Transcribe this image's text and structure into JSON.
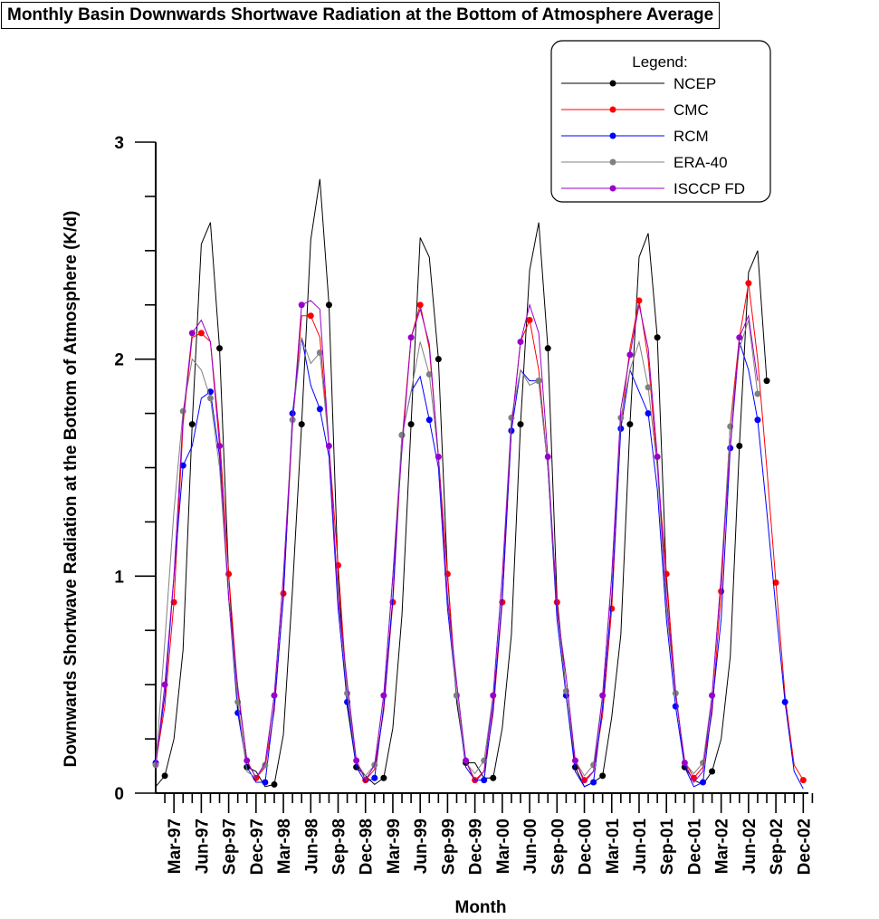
{
  "chart_data": {
    "type": "line",
    "title": "Monthly Basin Downwards Shortwave Radiation at the Bottom of Atmosphere Average",
    "xlabel": "Month",
    "ylabel": "Downwards Shortwave Radiation at the Bottom of Atmosphere (K/d)",
    "ylim": [
      0,
      3
    ],
    "yticks": [
      0,
      1,
      2,
      3
    ],
    "x_tick_labels": [
      "Mar-97",
      "Jun-97",
      "Sep-97",
      "Dec-97",
      "Mar-98",
      "Jun-98",
      "Sep-98",
      "Dec-98",
      "Mar-99",
      "Jun-99",
      "Sep-99",
      "Dec-99",
      "Mar-00",
      "Jun-00",
      "Sep-00",
      "Dec-00",
      "Mar-01",
      "Jun-01",
      "Sep-01",
      "Dec-01",
      "Mar-02",
      "Jun-02",
      "Sep-02",
      "Dec-02"
    ],
    "legend": {
      "title": "Legend:",
      "position": "top-right"
    },
    "series": [
      {
        "name": "NCEP",
        "color": "#000000",
        "marker_offset": 1,
        "values": [
          0.03,
          0.08,
          0.25,
          0.66,
          1.7,
          2.53,
          2.63,
          2.05,
          1.0,
          0.4,
          0.12,
          0.1,
          0.03,
          0.04,
          0.27,
          0.94,
          1.7,
          2.55,
          2.83,
          2.25,
          1.0,
          0.4,
          0.12,
          0.08,
          0.04,
          0.07,
          0.3,
          0.82,
          1.7,
          2.56,
          2.47,
          2.0,
          1.0,
          0.42,
          0.14,
          0.14,
          0.07,
          0.07,
          0.3,
          0.73,
          1.7,
          2.41,
          2.63,
          2.05,
          0.9,
          0.47,
          0.12,
          0.03,
          0.05,
          0.08,
          0.35,
          0.73,
          1.7,
          2.47,
          2.58,
          2.1,
          0.98,
          0.47,
          0.12,
          0.06,
          0.04,
          0.1,
          0.25,
          0.63,
          1.6,
          2.4,
          2.5,
          1.9
        ]
      },
      {
        "name": "CMC",
        "color": "#ff0000",
        "marker_offset": 2,
        "values": [
          0.14,
          0.4,
          0.88,
          1.7,
          2.1,
          2.12,
          2.08,
          1.65,
          1.01,
          0.47,
          0.15,
          0.07,
          0.12,
          0.38,
          0.92,
          1.7,
          2.2,
          2.2,
          2.1,
          1.6,
          1.05,
          0.45,
          0.15,
          0.06,
          0.11,
          0.38,
          0.88,
          1.62,
          2.1,
          2.25,
          2.05,
          1.55,
          1.01,
          0.45,
          0.15,
          0.06,
          0.1,
          0.37,
          0.88,
          1.68,
          2.08,
          2.18,
          1.95,
          1.5,
          0.88,
          0.45,
          0.15,
          0.06,
          0.1,
          0.36,
          0.85,
          1.7,
          2.05,
          2.27,
          2.0,
          1.5,
          1.01,
          0.45,
          0.15,
          0.07,
          0.12,
          0.37,
          0.93,
          1.7,
          2.1,
          2.35,
          2.0,
          1.5,
          0.97,
          0.45,
          0.13,
          0.06
        ]
      },
      {
        "name": "RCM",
        "color": "#0000ff",
        "marker_offset": 0,
        "values": [
          0.14,
          0.45,
          1.0,
          1.51,
          1.6,
          1.82,
          1.85,
          1.55,
          0.9,
          0.37,
          0.12,
          0.05,
          0.05,
          0.4,
          0.9,
          1.75,
          2.1,
          1.88,
          1.77,
          1.55,
          0.85,
          0.42,
          0.12,
          0.05,
          0.07,
          0.4,
          0.9,
          1.65,
          1.85,
          1.92,
          1.72,
          1.5,
          0.85,
          0.45,
          0.12,
          0.06,
          0.06,
          0.4,
          0.9,
          1.67,
          1.95,
          1.9,
          1.9,
          1.5,
          0.8,
          0.45,
          0.1,
          0.03,
          0.05,
          0.4,
          0.9,
          1.68,
          1.95,
          1.85,
          1.75,
          1.4,
          0.8,
          0.4,
          0.12,
          0.03,
          0.05,
          0.4,
          0.8,
          1.59,
          2.08,
          1.95,
          1.72,
          1.3,
          0.85,
          0.42,
          0.1,
          0.02
        ]
      },
      {
        "name": "ERA-40",
        "color": "#808080",
        "marker_offset": 0,
        "values": [
          0.13,
          0.7,
          1.3,
          1.76,
          2.0,
          1.95,
          1.82,
          1.5,
          0.9,
          0.42,
          0.1,
          0.07,
          0.13,
          0.45,
          1.0,
          1.72,
          2.1,
          1.98,
          2.03,
          1.6,
          0.9,
          0.46,
          0.14,
          0.08,
          0.13,
          0.45,
          1.0,
          1.65,
          1.85,
          2.08,
          1.93,
          1.55,
          0.9,
          0.45,
          0.14,
          0.09,
          0.15,
          0.45,
          1.0,
          1.73,
          1.95,
          1.88,
          1.9,
          1.5,
          0.85,
          0.47,
          0.15,
          0.08,
          0.13,
          0.45,
          1.0,
          1.73,
          1.95,
          2.08,
          1.87,
          1.5,
          0.85,
          0.46,
          0.14,
          0.09,
          0.14,
          0.45,
          1.0,
          1.69,
          2.05,
          2.18,
          1.84
        ]
      },
      {
        "name": "ISCCP FD",
        "color": "#9900cc",
        "marker_offset": 1,
        "values": [
          0.12,
          0.5,
          1.0,
          1.73,
          2.12,
          2.18,
          2.08,
          1.6,
          0.9,
          0.49,
          0.15,
          0.07,
          0.14,
          0.45,
          1.0,
          1.7,
          2.25,
          2.27,
          2.23,
          1.6,
          0.9,
          0.51,
          0.15,
          0.06,
          0.13,
          0.45,
          1.0,
          1.58,
          2.1,
          2.23,
          2.07,
          1.55,
          0.9,
          0.51,
          0.15,
          0.05,
          0.1,
          0.45,
          1.0,
          1.68,
          2.08,
          2.25,
          2.12,
          1.55,
          0.85,
          0.54,
          0.15,
          0.05,
          0.1,
          0.45,
          1.0,
          1.77,
          2.02,
          2.25,
          2.05,
          1.55,
          0.9,
          0.46,
          0.14,
          0.05,
          0.1,
          0.45,
          1.0,
          1.6,
          2.1,
          2.2,
          1.9
        ]
      }
    ]
  }
}
